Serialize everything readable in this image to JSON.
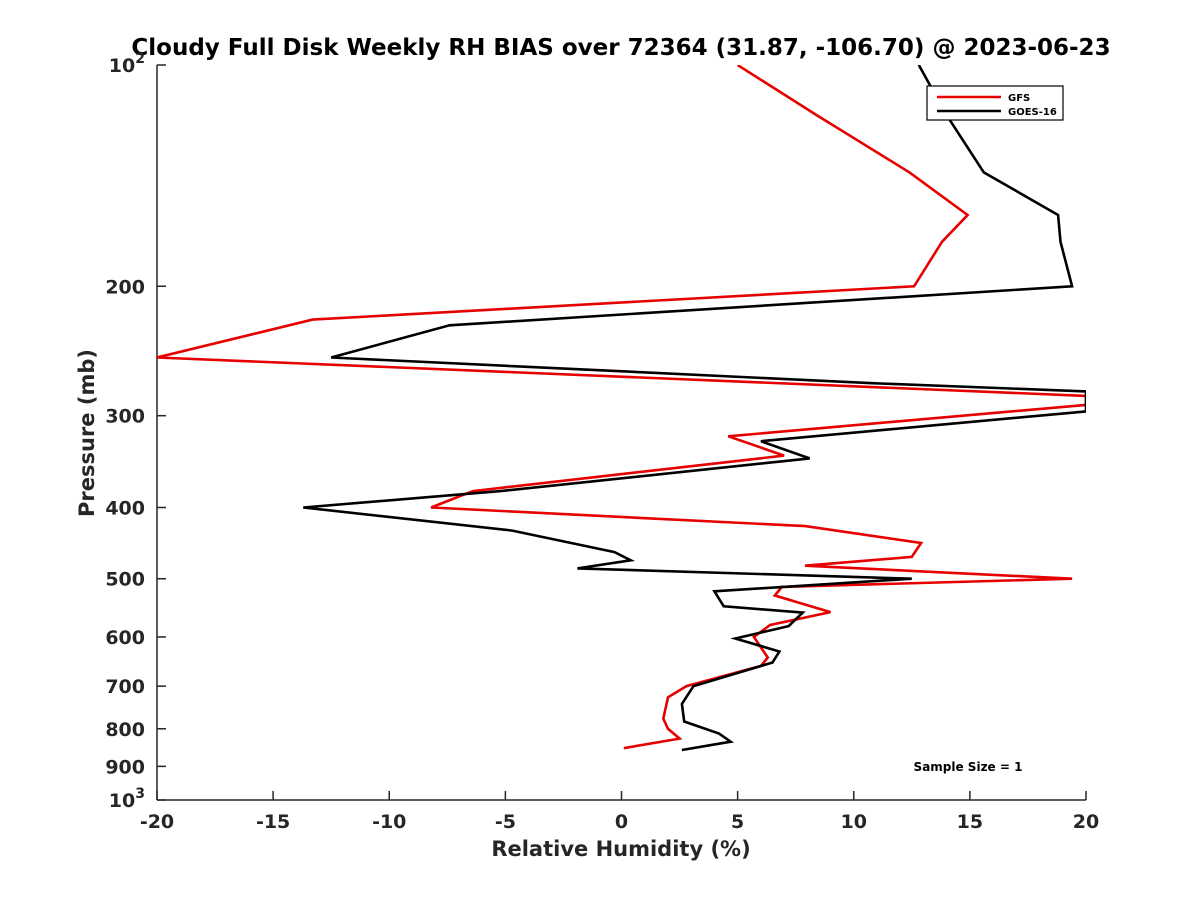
{
  "chart_data": {
    "type": "line",
    "title": "Cloudy Full Disk Weekly RH BIAS over 72364 (31.87, -106.70) @ 2023-06-23",
    "xlabel": "Relative Humidity (%)",
    "ylabel": "Pressure (mb)",
    "xlim": [
      -20,
      20
    ],
    "ylim": [
      100,
      1000
    ],
    "y_scale": "log",
    "y_inverted": true,
    "grid": false,
    "legend_position": "top-right",
    "x_ticks": [
      -20,
      -15,
      -10,
      -5,
      0,
      5,
      10,
      15,
      20
    ],
    "x_tick_labels": [
      "-20",
      "-15",
      "-10",
      "-5",
      "0",
      "5",
      "10",
      "15",
      "20"
    ],
    "y_ticks": [
      200,
      300,
      400,
      500,
      600,
      700,
      800,
      900
    ],
    "y_tick_labels": [
      "200",
      "300",
      "400",
      "500",
      "600",
      "700",
      "800",
      "900"
    ],
    "y_limit_labels": {
      "top_base": "10",
      "top_exp": "2",
      "bottom_base": "10",
      "bottom_exp": "3"
    },
    "annotation": "Sample Size = 1",
    "series": [
      {
        "name": "GFS",
        "color": "#e60000",
        "points": [
          [
            5.0,
            100
          ],
          [
            8.4,
            117
          ],
          [
            12.4,
            140
          ],
          [
            14.9,
            160
          ],
          [
            13.8,
            174
          ],
          [
            12.6,
            200
          ],
          [
            -13.3,
            222
          ],
          [
            -20.0,
            250
          ],
          [
            20.0,
            282
          ],
          [
            20.0,
            290
          ],
          [
            4.6,
            320
          ],
          [
            7.0,
            340
          ],
          [
            -6.4,
            380
          ],
          [
            -8.2,
            400
          ],
          [
            7.9,
            424
          ],
          [
            12.9,
            447
          ],
          [
            12.5,
            467
          ],
          [
            7.9,
            480
          ],
          [
            19.4,
            500
          ],
          [
            6.9,
            513
          ],
          [
            6.6,
            527
          ],
          [
            9.0,
            555
          ],
          [
            6.4,
            578
          ],
          [
            5.7,
            600
          ],
          [
            6.0,
            620
          ],
          [
            6.3,
            640
          ],
          [
            6.0,
            657
          ],
          [
            2.8,
            700
          ],
          [
            2.0,
            725
          ],
          [
            1.8,
            775
          ],
          [
            2.0,
            800
          ],
          [
            2.5,
            825
          ],
          [
            0.1,
            850
          ]
        ]
      },
      {
        "name": "GOES-16",
        "color": "#000000",
        "points": [
          [
            12.8,
            100
          ],
          [
            14.0,
            117
          ],
          [
            15.6,
            140
          ],
          [
            18.8,
            160
          ],
          [
            18.9,
            174
          ],
          [
            19.4,
            200
          ],
          [
            -7.4,
            226
          ],
          [
            -12.5,
            250
          ],
          [
            10.8,
            271
          ],
          [
            20.0,
            278
          ],
          [
            20.0,
            296
          ],
          [
            6.0,
            325
          ],
          [
            8.1,
            343
          ],
          [
            -5.2,
            380
          ],
          [
            -13.7,
            400
          ],
          [
            -4.7,
            430
          ],
          [
            -0.3,
            460
          ],
          [
            0.4,
            472
          ],
          [
            -1.9,
            484
          ],
          [
            12.5,
            500
          ],
          [
            4.0,
            520
          ],
          [
            4.4,
            545
          ],
          [
            7.8,
            556
          ],
          [
            7.2,
            580
          ],
          [
            4.9,
            603
          ],
          [
            6.8,
            628
          ],
          [
            6.5,
            650
          ],
          [
            3.1,
            700
          ],
          [
            2.6,
            740
          ],
          [
            2.7,
            782
          ],
          [
            4.2,
            812
          ],
          [
            4.7,
            833
          ],
          [
            2.6,
            855
          ]
        ]
      }
    ]
  }
}
